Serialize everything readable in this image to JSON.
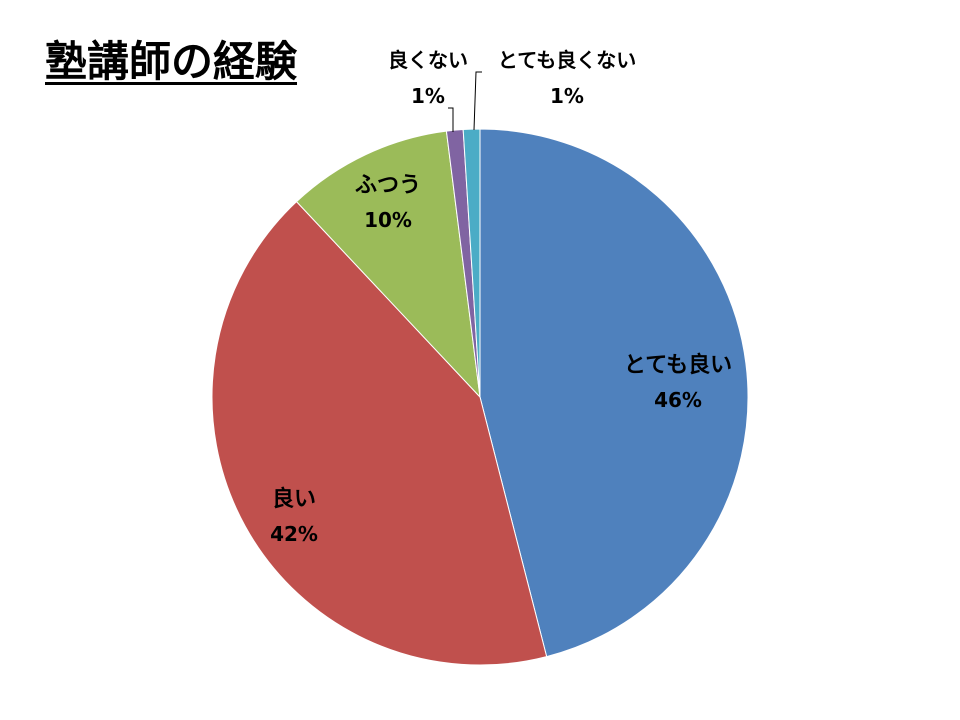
{
  "chart_data": {
    "type": "pie",
    "title": "塾講師の経験",
    "slices": [
      {
        "label": "とても良い",
        "value": 46,
        "value_label": "46%",
        "color": "#4F81BD"
      },
      {
        "label": "良い",
        "value": 42,
        "value_label": "42%",
        "color": "#C0504D"
      },
      {
        "label": "ふつう",
        "value": 10,
        "value_label": "10%",
        "color": "#9BBB59"
      },
      {
        "label": "良くない",
        "value": 1,
        "value_label": "1%",
        "color": "#8064A2"
      },
      {
        "label": "とても良くない",
        "value": 1,
        "value_label": "1%",
        "color": "#4BACC6"
      }
    ],
    "start": "top",
    "direction": "clockwise",
    "legend": "none"
  }
}
